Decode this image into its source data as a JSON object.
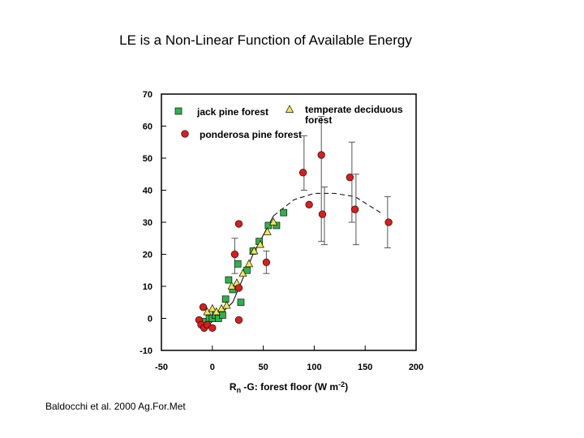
{
  "slide": {
    "title": "LE is a Non-Linear Function of  Available Energy",
    "citation": "Baldocchi et al. 2000 Ag.For.Met"
  },
  "colors": {
    "jack_pine": "#2db34a",
    "temperate_deciduous": "#f2e84c",
    "ponderosa_pine": "#e01b1b"
  },
  "chart_data": {
    "type": "scatter",
    "title": "",
    "xlabel": "Rn -G: forest floor (W m-2)",
    "ylabel": "",
    "xlim": [
      -50,
      200
    ],
    "ylim": [
      -10,
      70
    ],
    "x_ticks": [
      -50,
      0,
      50,
      100,
      150,
      200
    ],
    "y_ticks": [
      -10,
      0,
      10,
      20,
      30,
      40,
      50,
      60,
      70
    ],
    "grid": false,
    "legend_position": "top-left",
    "series": [
      {
        "name": "jack pine forest",
        "marker": "square",
        "color": "#2db34a",
        "points": [
          [
            -8,
            -1
          ],
          [
            -3,
            0
          ],
          [
            0,
            0
          ],
          [
            3,
            1
          ],
          [
            6,
            0
          ],
          [
            10,
            1
          ],
          [
            13,
            6
          ],
          [
            16,
            12
          ],
          [
            20,
            9
          ],
          [
            25,
            17
          ],
          [
            28,
            5
          ],
          [
            34,
            15
          ],
          [
            40,
            21
          ],
          [
            46,
            24
          ],
          [
            55,
            29
          ],
          [
            63,
            29
          ],
          [
            70,
            33
          ]
        ]
      },
      {
        "name": "temperate deciduous forest",
        "marker": "triangle",
        "color": "#f2e84c",
        "points": [
          [
            -5,
            2
          ],
          [
            0,
            3
          ],
          [
            4,
            2
          ],
          [
            9,
            3
          ],
          [
            14,
            4
          ],
          [
            19,
            10
          ],
          [
            24,
            11
          ],
          [
            30,
            14
          ],
          [
            36,
            17
          ],
          [
            41,
            21
          ],
          [
            47,
            23
          ],
          [
            54,
            27
          ],
          [
            60,
            30
          ]
        ]
      },
      {
        "name": "ponderosa pine forest",
        "marker": "circle",
        "color": "#e01b1b",
        "points": [
          [
            -13,
            -0.5
          ],
          [
            -11,
            -2
          ],
          [
            -8,
            -3
          ],
          [
            -5,
            -2
          ],
          [
            0,
            -3
          ],
          [
            -9,
            3.5
          ],
          [
            22,
            20
          ],
          [
            26,
            29.5
          ],
          [
            26,
            9.5
          ],
          [
            26,
            -0.5
          ],
          [
            53,
            17.5
          ],
          [
            89,
            45.5
          ],
          [
            95,
            35.5
          ],
          [
            107,
            51
          ],
          [
            108,
            32.5
          ],
          [
            135,
            44
          ],
          [
            140,
            34
          ],
          [
            173,
            30
          ]
        ],
        "error_bars": [
          [
            22,
            14,
            25
          ],
          [
            90,
            40,
            57
          ],
          [
            107,
            24,
            63
          ],
          [
            110,
            23,
            41
          ],
          [
            137,
            30,
            55
          ],
          [
            141,
            23,
            45
          ],
          [
            172,
            22,
            38
          ],
          [
            53,
            14,
            21
          ]
        ]
      }
    ],
    "fit_lines": [
      {
        "style": "solid",
        "points": [
          [
            -10,
            -4
          ],
          [
            0,
            -1
          ],
          [
            20,
            5
          ],
          [
            40,
            20
          ],
          [
            60,
            32
          ]
        ]
      },
      {
        "style": "dashed",
        "points": [
          [
            60,
            32
          ],
          [
            80,
            37
          ],
          [
            100,
            39
          ],
          [
            120,
            39
          ],
          [
            140,
            38
          ],
          [
            165,
            33
          ]
        ]
      }
    ]
  }
}
